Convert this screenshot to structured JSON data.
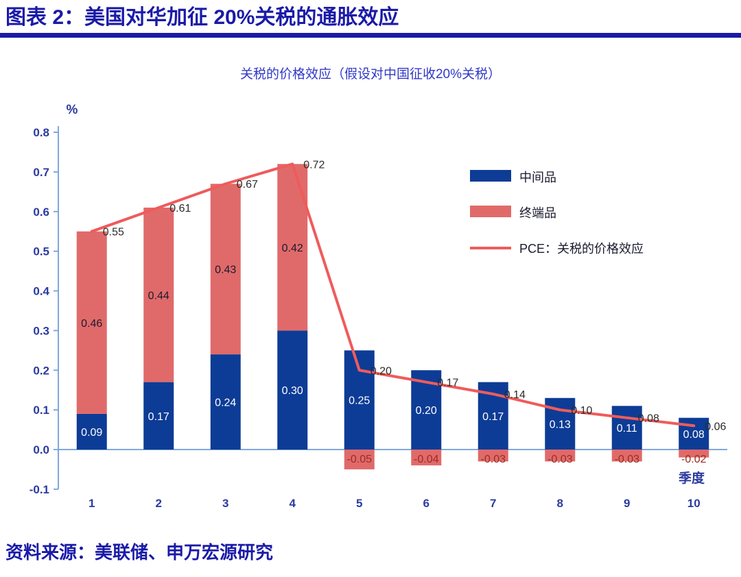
{
  "page": {
    "header_title": "图表 2：美国对华加征 20%关税的通胀效应",
    "source": "资料来源：美联储、申万宏源研究"
  },
  "chart_data": {
    "type": "bar",
    "subtype": "stacked-bar-with-line",
    "title": "关税的价格效应（假设对中国征收20%关税）",
    "y_unit": "%",
    "xlabel": "季度",
    "ylim": [
      -0.1,
      0.8
    ],
    "y_ticks": [
      0.8,
      0.7,
      0.6,
      0.5,
      0.4,
      0.3,
      0.2,
      0.1,
      0.0,
      -0.1
    ],
    "categories": [
      "1",
      "2",
      "3",
      "4",
      "5",
      "6",
      "7",
      "8",
      "9",
      "10"
    ],
    "grid": false,
    "legend_position": "upper-right-inside",
    "series": [
      {
        "name": "中间品",
        "type": "bar",
        "color": "#0D3C96",
        "values": [
          0.09,
          0.17,
          0.24,
          0.3,
          0.25,
          0.2,
          0.17,
          0.13,
          0.11,
          0.08
        ]
      },
      {
        "name": "终端品",
        "type": "bar",
        "color": "#E06A6A",
        "values": [
          0.46,
          0.44,
          0.43,
          0.42,
          -0.05,
          -0.04,
          -0.03,
          -0.03,
          -0.03,
          -0.02
        ]
      },
      {
        "name": "PCE：关税的价格效应",
        "type": "line",
        "color": "#EF5B5B",
        "values": [
          0.55,
          0.61,
          0.67,
          0.72,
          0.2,
          0.17,
          0.14,
          0.1,
          0.08,
          0.06
        ]
      }
    ],
    "colors": {
      "axis_line": "#7FA8DC",
      "axis_text": "#2B3AA0",
      "bar_label_on_blue": "#FFFFFF",
      "bar_label_on_red": "#1A1A2E",
      "negative_label": "#9C2B21",
      "line_label": "#2B2B2B",
      "legend_text": "#1A1A2E"
    }
  }
}
